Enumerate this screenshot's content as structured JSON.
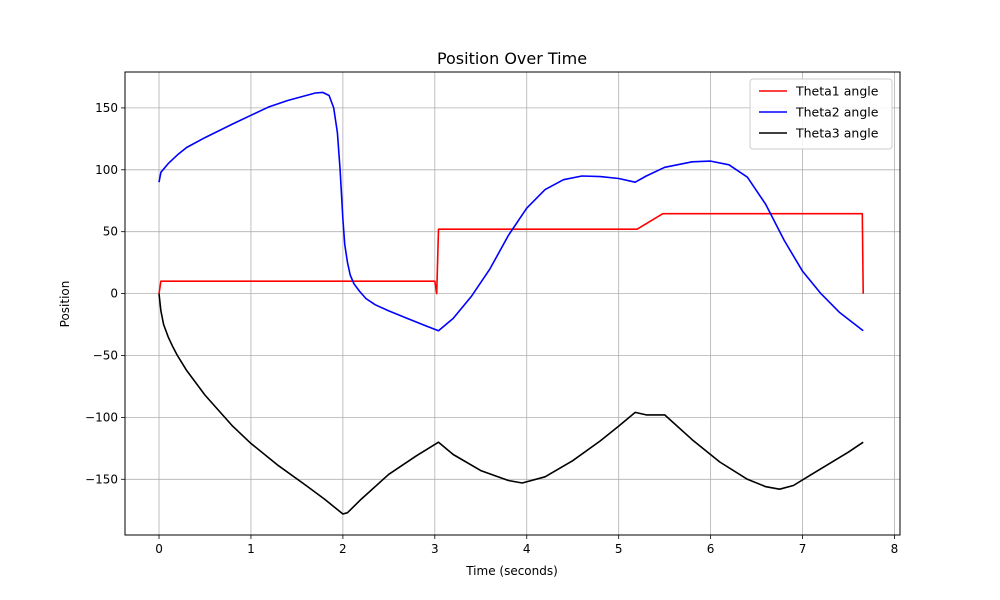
{
  "chart_data": {
    "type": "line",
    "title": "Position Over Time",
    "xlabel": "Time (seconds)",
    "ylabel": "Position",
    "xlim": [
      -0.37,
      8.06
    ],
    "ylim": [
      -195,
      179
    ],
    "xticks": [
      0,
      1,
      2,
      3,
      4,
      5,
      6,
      7,
      8
    ],
    "yticks": [
      -150,
      -100,
      -50,
      0,
      50,
      100,
      150
    ],
    "xtick_labels": [
      "0",
      "1",
      "2",
      "3",
      "4",
      "5",
      "6",
      "7",
      "8"
    ],
    "ytick_labels": [
      "−150",
      "−100",
      "−50",
      "0",
      "50",
      "100",
      "150"
    ],
    "grid": true,
    "legend_position": "top-right",
    "series": [
      {
        "name": "Theta1 angle",
        "color": "#ff0000",
        "x": [
          0,
          0.02,
          3.0,
          3.02,
          3.04,
          3.05,
          5.2,
          5.48,
          7.65,
          7.66
        ],
        "y": [
          0,
          10,
          10,
          0,
          52,
          52,
          52,
          64.5,
          64.5,
          0
        ]
      },
      {
        "name": "Theta2 angle",
        "color": "#0000ff",
        "x": [
          0,
          0.02,
          0.1,
          0.2,
          0.3,
          0.5,
          0.8,
          1.0,
          1.2,
          1.4,
          1.6,
          1.7,
          1.78,
          1.85,
          1.9,
          1.94,
          1.97,
          2.0,
          2.02,
          2.05,
          2.08,
          2.12,
          2.18,
          2.25,
          2.35,
          2.5,
          2.7,
          2.9,
          3.04,
          3.2,
          3.4,
          3.6,
          3.8,
          4.0,
          4.2,
          4.4,
          4.6,
          4.8,
          5.0,
          5.18,
          5.3,
          5.5,
          5.8,
          6.0,
          6.2,
          6.4,
          6.6,
          6.8,
          7.0,
          7.2,
          7.4,
          7.66
        ],
        "y": [
          90,
          98,
          105,
          112,
          118,
          126,
          137,
          144,
          151,
          156,
          160,
          162,
          162.5,
          160,
          150,
          130,
          100,
          60,
          40,
          25,
          15,
          8,
          2,
          -4,
          -9,
          -14,
          -20,
          -26,
          -30,
          -20,
          -2,
          20,
          47,
          69,
          84,
          92,
          95,
          94.5,
          93,
          90,
          95,
          102,
          106.5,
          107,
          104,
          94,
          72,
          43,
          18,
          0,
          -15,
          -30
        ]
      },
      {
        "name": "Theta3 angle",
        "color": "#000000",
        "x": [
          0,
          0.02,
          0.05,
          0.1,
          0.15,
          0.2,
          0.25,
          0.3,
          0.5,
          0.8,
          1.0,
          1.3,
          1.6,
          1.8,
          2.0,
          2.05,
          2.2,
          2.5,
          2.8,
          3.04,
          3.2,
          3.5,
          3.8,
          3.95,
          4.2,
          4.5,
          4.8,
          5.0,
          5.18,
          5.3,
          5.5,
          5.8,
          6.1,
          6.4,
          6.6,
          6.75,
          6.9,
          7.1,
          7.3,
          7.5,
          7.66
        ],
        "y": [
          0,
          -14,
          -25,
          -35,
          -43,
          -50,
          -56,
          -62,
          -82,
          -107,
          -121,
          -139,
          -155,
          -166,
          -178,
          -177,
          -166,
          -146,
          -131,
          -120,
          -130,
          -143,
          -151,
          -153,
          -148,
          -135,
          -119,
          -107,
          -96,
          -98,
          -98,
          -118,
          -136,
          -150,
          -156,
          -158,
          -155,
          -146,
          -137,
          -128,
          -120
        ]
      }
    ]
  }
}
